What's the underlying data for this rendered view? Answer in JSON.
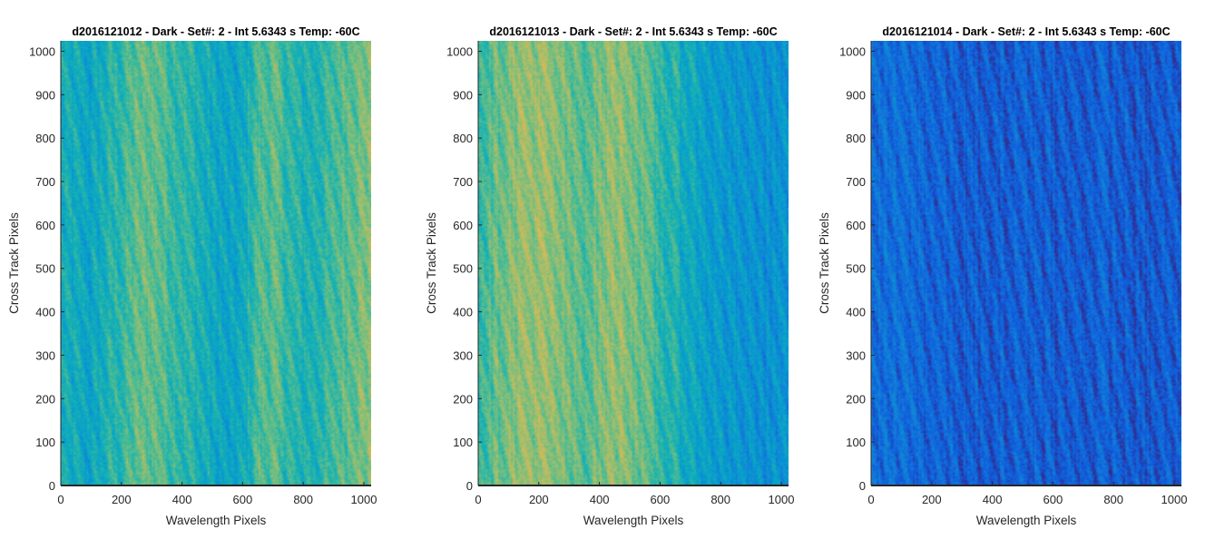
{
  "chart_data": [
    {
      "type": "heatmap",
      "title": "d2016121012 - Dark - Set#: 2 - Int 5.6343 s Temp: -60C",
      "xlabel": "Wavelength Pixels",
      "ylabel": "Cross Track Pixels",
      "xlim": [
        0,
        1024
      ],
      "ylim": [
        0,
        1024
      ],
      "xticks": [
        "0",
        "200",
        "400",
        "600",
        "800",
        "1000"
      ],
      "yticks": [
        "0",
        "100",
        "200",
        "300",
        "400",
        "500",
        "600",
        "700",
        "800",
        "900",
        "1000"
      ],
      "colormap": "parula",
      "column_profile": {
        "x": [
          0,
          50,
          100,
          150,
          200,
          250,
          300,
          350,
          400,
          450,
          500,
          550,
          600,
          650,
          700,
          750,
          800,
          850,
          900,
          950,
          1024
        ],
        "level": [
          0.38,
          0.36,
          0.34,
          0.4,
          0.44,
          0.5,
          0.52,
          0.48,
          0.44,
          0.4,
          0.36,
          0.33,
          0.35,
          0.48,
          0.5,
          0.44,
          0.4,
          0.42,
          0.46,
          0.52,
          0.56
        ]
      }
    },
    {
      "type": "heatmap",
      "title": "d2016121013 - Dark - Set#: 2 - Int 5.6343 s Temp: -60C",
      "xlabel": "Wavelength Pixels",
      "ylabel": "Cross Track Pixels",
      "xlim": [
        0,
        1024
      ],
      "ylim": [
        0,
        1024
      ],
      "xticks": [
        "0",
        "200",
        "400",
        "600",
        "800",
        "1000"
      ],
      "yticks": [
        "0",
        "100",
        "200",
        "300",
        "400",
        "500",
        "600",
        "700",
        "800",
        "900",
        "1000"
      ],
      "colormap": "parula",
      "column_profile": {
        "x": [
          0,
          50,
          100,
          150,
          200,
          250,
          300,
          350,
          400,
          450,
          500,
          550,
          600,
          650,
          700,
          750,
          800,
          850,
          900,
          950,
          1024
        ],
        "level": [
          0.46,
          0.5,
          0.56,
          0.58,
          0.58,
          0.56,
          0.52,
          0.5,
          0.54,
          0.58,
          0.56,
          0.5,
          0.44,
          0.4,
          0.36,
          0.32,
          0.3,
          0.28,
          0.27,
          0.27,
          0.28
        ]
      }
    },
    {
      "type": "heatmap",
      "title": "d2016121014 - Dark - Set#: 2 - Int 5.6343 s Temp: -60C",
      "xlabel": "Wavelength Pixels",
      "ylabel": "Cross Track Pixels",
      "xlim": [
        0,
        1024
      ],
      "ylim": [
        0,
        1024
      ],
      "xticks": [
        "0",
        "200",
        "400",
        "600",
        "800",
        "1000"
      ],
      "yticks": [
        "0",
        "100",
        "200",
        "300",
        "400",
        "500",
        "600",
        "700",
        "800",
        "900",
        "1000"
      ],
      "colormap": "parula",
      "column_profile": {
        "x": [
          0,
          50,
          100,
          150,
          200,
          250,
          300,
          350,
          400,
          450,
          500,
          550,
          600,
          650,
          700,
          750,
          800,
          850,
          900,
          950,
          1024
        ],
        "level": [
          0.16,
          0.15,
          0.15,
          0.14,
          0.13,
          0.12,
          0.11,
          0.1,
          0.1,
          0.11,
          0.12,
          0.12,
          0.11,
          0.1,
          0.11,
          0.12,
          0.11,
          0.1,
          0.09,
          0.1,
          0.11
        ]
      }
    }
  ]
}
